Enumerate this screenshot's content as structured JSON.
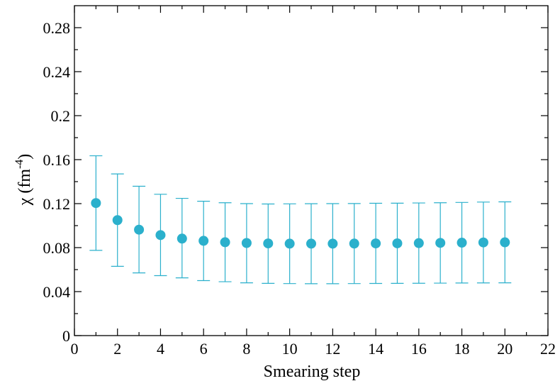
{
  "chart_data": {
    "type": "scatter",
    "title": "",
    "xlabel": "Smearing step",
    "ylabel": "χ (fm",
    "ylabel_sup": "-4",
    "ylabel_close": ")",
    "xlim": [
      0,
      22
    ],
    "ylim": [
      0,
      0.3
    ],
    "x_major_ticks": [
      0,
      2,
      4,
      6,
      8,
      10,
      12,
      14,
      16,
      18,
      20,
      22
    ],
    "y_major_ticks": [
      0,
      0.04,
      0.08,
      0.12,
      0.16,
      0.2,
      0.24,
      0.28
    ],
    "x_tick_labels": [
      "0",
      "2",
      "4",
      "6",
      "8",
      "10",
      "12",
      "14",
      "16",
      "18",
      "20",
      "22"
    ],
    "y_tick_labels": [
      "0",
      "0.04",
      "0.08",
      "0.12",
      "0.16",
      "0.2",
      "0.24",
      "0.28"
    ],
    "grid": false,
    "legend": "none",
    "color": "#2bb0cc",
    "series": [
      {
        "x": [
          1,
          2,
          3,
          4,
          5,
          6,
          7,
          8,
          9,
          10,
          11,
          12,
          13,
          14,
          15,
          16,
          17,
          18,
          19,
          20
        ],
        "y": [
          0.1205,
          0.105,
          0.0963,
          0.0914,
          0.0882,
          0.0862,
          0.0849,
          0.0842,
          0.0838,
          0.0836,
          0.0836,
          0.0836,
          0.0837,
          0.0838,
          0.0839,
          0.0841,
          0.0843,
          0.0845,
          0.0847,
          0.0848
        ],
        "err_low": [
          0.0775,
          0.063,
          0.057,
          0.0545,
          0.0525,
          0.05,
          0.049,
          0.048,
          0.0475,
          0.0473,
          0.0472,
          0.0472,
          0.0473,
          0.0474,
          0.0475,
          0.0476,
          0.0477,
          0.0478,
          0.0479,
          0.048
        ],
        "err_high": [
          0.1635,
          0.147,
          0.1358,
          0.1285,
          0.1248,
          0.1222,
          0.1208,
          0.12,
          0.1197,
          0.1198,
          0.1199,
          0.12,
          0.1201,
          0.1203,
          0.1204,
          0.1206,
          0.1208,
          0.1211,
          0.1214,
          0.1216
        ]
      }
    ]
  }
}
